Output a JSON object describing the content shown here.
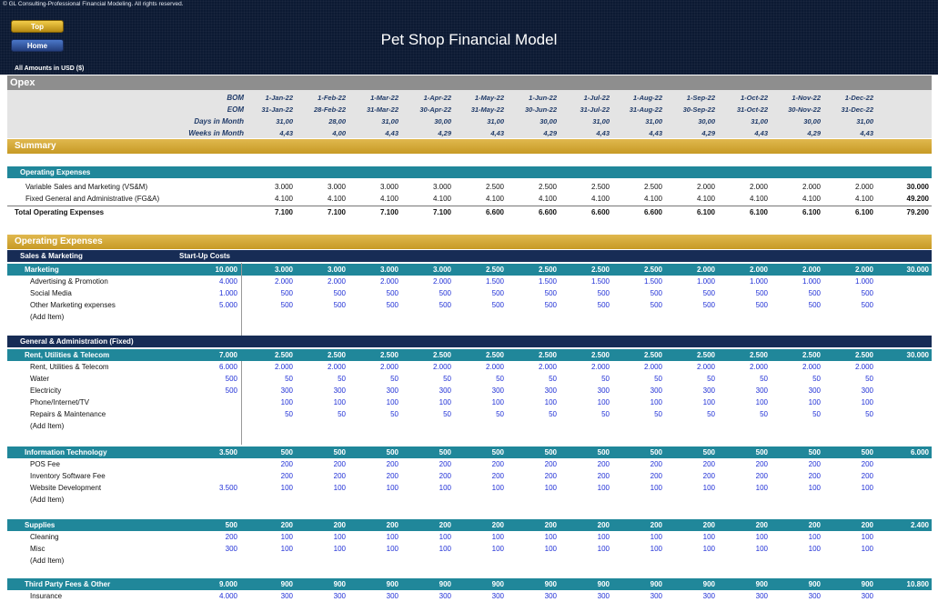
{
  "header": {
    "copyright": "© GL Consulting-Professional Financial Modeling. All rights reserved.",
    "top_button": "Top",
    "home_button": "Home",
    "title": "Pet Shop Financial Model",
    "currency_note": "All Amounts in  USD ($)"
  },
  "opex_title": "Opex",
  "dates": {
    "bom_label": "BOM",
    "eom_label": "EOM",
    "dim_label": "Days in Month",
    "wim_label": "Weeks in Month",
    "bom": [
      "1-Jan-22",
      "1-Feb-22",
      "1-Mar-22",
      "1-Apr-22",
      "1-May-22",
      "1-Jun-22",
      "1-Jul-22",
      "1-Aug-22",
      "1-Sep-22",
      "1-Oct-22",
      "1-Nov-22",
      "1-Dec-22"
    ],
    "eom": [
      "31-Jan-22",
      "28-Feb-22",
      "31-Mar-22",
      "30-Apr-22",
      "31-May-22",
      "30-Jun-22",
      "31-Jul-22",
      "31-Aug-22",
      "30-Sep-22",
      "31-Oct-22",
      "30-Nov-22",
      "31-Dec-22"
    ],
    "days": [
      "31,00",
      "28,00",
      "31,00",
      "30,00",
      "31,00",
      "30,00",
      "31,00",
      "31,00",
      "30,00",
      "31,00",
      "30,00",
      "31,00"
    ],
    "weeks": [
      "4,43",
      "4,00",
      "4,43",
      "4,29",
      "4,43",
      "4,29",
      "4,43",
      "4,43",
      "4,29",
      "4,43",
      "4,29",
      "4,43"
    ]
  },
  "summary": {
    "title": "Summary",
    "subheader": "Operating Expenses",
    "rows": [
      {
        "label": "Variable Sales and Marketing (VS&M)",
        "values": [
          "3.000",
          "3.000",
          "3.000",
          "3.000",
          "2.500",
          "2.500",
          "2.500",
          "2.500",
          "2.000",
          "2.000",
          "2.000",
          "2.000"
        ],
        "total": "30.000"
      },
      {
        "label": "Fixed General and Administrative (FG&A)",
        "values": [
          "4.100",
          "4.100",
          "4.100",
          "4.100",
          "4.100",
          "4.100",
          "4.100",
          "4.100",
          "4.100",
          "4.100",
          "4.100",
          "4.100"
        ],
        "total": "49.200"
      }
    ],
    "total_row": {
      "label": "Total Operating Expenses",
      "values": [
        "7.100",
        "7.100",
        "7.100",
        "7.100",
        "6.600",
        "6.600",
        "6.600",
        "6.600",
        "6.100",
        "6.100",
        "6.100",
        "6.100"
      ],
      "total": "79.200"
    }
  },
  "opex": {
    "title": "Operating Expenses",
    "sales_marketing_label": "Sales & Marketing",
    "startup_label": "Start-Up Costs",
    "general_admin_label": "General & Administration (Fixed)",
    "add_item": "(Add Item)",
    "groups": [
      {
        "name": "Marketing",
        "startup": "10.000",
        "values": [
          "3.000",
          "3.000",
          "3.000",
          "3.000",
          "2.500",
          "2.500",
          "2.500",
          "2.500",
          "2.000",
          "2.000",
          "2.000",
          "2.000"
        ],
        "total": "30.000",
        "items": [
          {
            "label": "Advertising & Promotion",
            "startup": "4.000",
            "values": [
              "2.000",
              "2.000",
              "2.000",
              "2.000",
              "1.500",
              "1.500",
              "1.500",
              "1.500",
              "1.000",
              "1.000",
              "1.000",
              "1.000"
            ]
          },
          {
            "label": "Social Media",
            "startup": "1.000",
            "values": [
              "500",
              "500",
              "500",
              "500",
              "500",
              "500",
              "500",
              "500",
              "500",
              "500",
              "500",
              "500"
            ]
          },
          {
            "label": "Other Marketing expenses",
            "startup": "5.000",
            "values": [
              "500",
              "500",
              "500",
              "500",
              "500",
              "500",
              "500",
              "500",
              "500",
              "500",
              "500",
              "500"
            ]
          }
        ]
      },
      {
        "name": "Rent, Utilities & Telecom",
        "startup": "7.000",
        "values": [
          "2.500",
          "2.500",
          "2.500",
          "2.500",
          "2.500",
          "2.500",
          "2.500",
          "2.500",
          "2.500",
          "2.500",
          "2.500",
          "2.500"
        ],
        "total": "30.000",
        "items": [
          {
            "label": "Rent, Utilities & Telecom",
            "startup": "6.000",
            "values": [
              "2.000",
              "2.000",
              "2.000",
              "2.000",
              "2.000",
              "2.000",
              "2.000",
              "2.000",
              "2.000",
              "2.000",
              "2.000",
              "2.000"
            ]
          },
          {
            "label": "Water",
            "startup": "500",
            "values": [
              "50",
              "50",
              "50",
              "50",
              "50",
              "50",
              "50",
              "50",
              "50",
              "50",
              "50",
              "50"
            ]
          },
          {
            "label": "Electricity",
            "startup": "500",
            "values": [
              "300",
              "300",
              "300",
              "300",
              "300",
              "300",
              "300",
              "300",
              "300",
              "300",
              "300",
              "300"
            ]
          },
          {
            "label": "Phone/Internet/TV",
            "startup": "",
            "values": [
              "100",
              "100",
              "100",
              "100",
              "100",
              "100",
              "100",
              "100",
              "100",
              "100",
              "100",
              "100"
            ]
          },
          {
            "label": "Repairs & Maintenance",
            "startup": "",
            "values": [
              "50",
              "50",
              "50",
              "50",
              "50",
              "50",
              "50",
              "50",
              "50",
              "50",
              "50",
              "50"
            ]
          }
        ]
      },
      {
        "name": "Information Technology",
        "startup": "3.500",
        "values": [
          "500",
          "500",
          "500",
          "500",
          "500",
          "500",
          "500",
          "500",
          "500",
          "500",
          "500",
          "500"
        ],
        "total": "6.000",
        "items": [
          {
            "label": "POS Fee",
            "startup": "",
            "values": [
              "200",
              "200",
              "200",
              "200",
              "200",
              "200",
              "200",
              "200",
              "200",
              "200",
              "200",
              "200"
            ]
          },
          {
            "label": "Inventory Software Fee",
            "startup": "",
            "values": [
              "200",
              "200",
              "200",
              "200",
              "200",
              "200",
              "200",
              "200",
              "200",
              "200",
              "200",
              "200"
            ]
          },
          {
            "label": "Website Development",
            "startup": "3.500",
            "values": [
              "100",
              "100",
              "100",
              "100",
              "100",
              "100",
              "100",
              "100",
              "100",
              "100",
              "100",
              "100"
            ]
          }
        ]
      },
      {
        "name": "Supplies",
        "startup": "500",
        "values": [
          "200",
          "200",
          "200",
          "200",
          "200",
          "200",
          "200",
          "200",
          "200",
          "200",
          "200",
          "200"
        ],
        "total": "2.400",
        "items": [
          {
            "label": "Cleaning",
            "startup": "200",
            "values": [
              "100",
              "100",
              "100",
              "100",
              "100",
              "100",
              "100",
              "100",
              "100",
              "100",
              "100",
              "100"
            ]
          },
          {
            "label": "Misc",
            "startup": "300",
            "values": [
              "100",
              "100",
              "100",
              "100",
              "100",
              "100",
              "100",
              "100",
              "100",
              "100",
              "100",
              "100"
            ]
          }
        ]
      },
      {
        "name": "Third Party Fees & Other",
        "startup": "9.000",
        "values": [
          "900",
          "900",
          "900",
          "900",
          "900",
          "900",
          "900",
          "900",
          "900",
          "900",
          "900",
          "900"
        ],
        "total": "10.800",
        "items": [
          {
            "label": "Insurance",
            "startup": "4.000",
            "values": [
              "300",
              "300",
              "300",
              "300",
              "300",
              "300",
              "300",
              "300",
              "300",
              "300",
              "300",
              "300"
            ]
          }
        ]
      }
    ]
  }
}
